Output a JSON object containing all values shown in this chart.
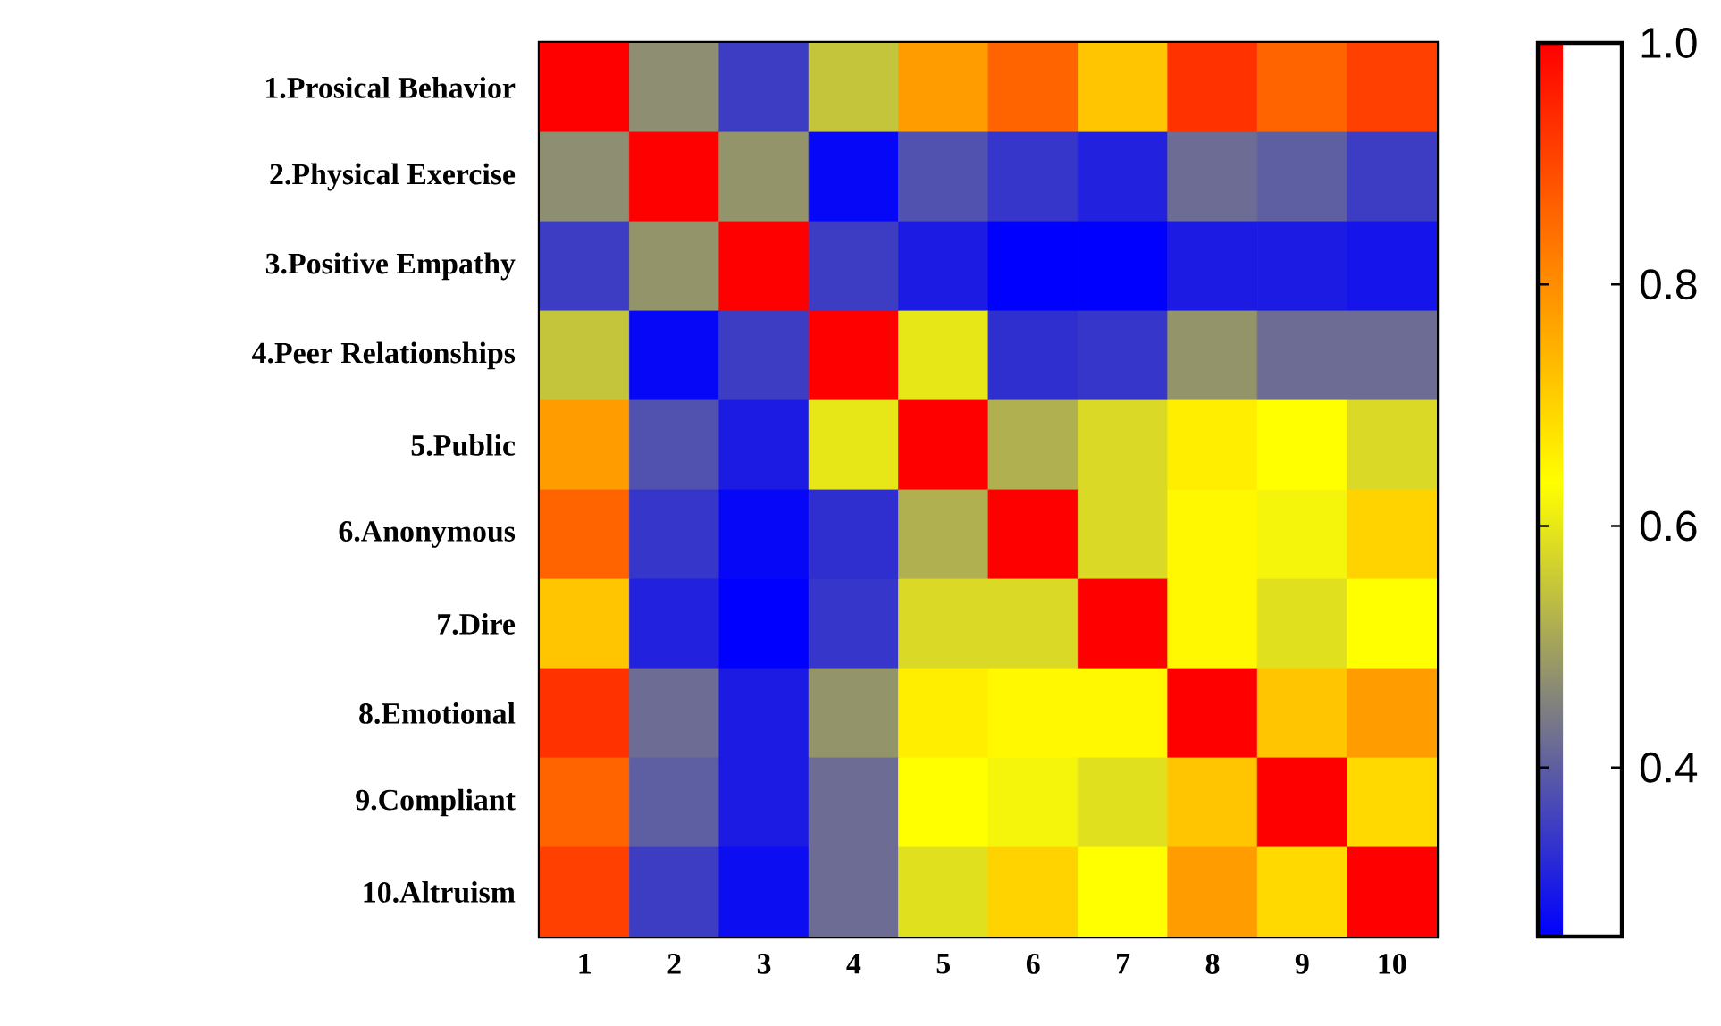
{
  "chart_data": {
    "type": "heatmap",
    "categories": [
      "1",
      "2",
      "3",
      "4",
      "5",
      "6",
      "7",
      "8",
      "9",
      "10"
    ],
    "y_categories": [
      "1.Prosical Behavior",
      "2.Physical Exercise",
      "3.Positive Empathy",
      "4.Peer Relationships",
      "5.Public",
      "6.Anonymous",
      "7.Dire",
      "8.Emotional",
      "9.Compliant",
      "10.Altruism"
    ],
    "cells": [
      [
        1,
        0.47,
        0.35,
        0.55,
        0.78,
        0.86,
        0.72,
        0.93,
        0.86,
        0.91
      ],
      [
        0.47,
        1,
        0.48,
        0.27,
        0.38,
        0.34,
        0.31,
        0.42,
        0.4,
        0.35
      ],
      [
        0.35,
        0.48,
        1,
        0.35,
        0.3,
        0.26,
        0.26,
        0.3,
        0.3,
        0.29
      ],
      [
        0.55,
        0.27,
        0.35,
        1,
        0.6,
        0.33,
        0.34,
        0.48,
        0.42,
        0.42
      ],
      [
        0.78,
        0.38,
        0.3,
        0.6,
        1,
        0.52,
        0.58,
        0.66,
        0.635,
        0.58
      ],
      [
        0.86,
        0.34,
        0.27,
        0.33,
        0.52,
        1,
        0.58,
        0.645,
        0.62,
        0.7
      ],
      [
        0.72,
        0.31,
        0.26,
        0.34,
        0.58,
        0.58,
        1,
        0.645,
        0.59,
        0.635
      ],
      [
        0.93,
        0.42,
        0.3,
        0.48,
        0.66,
        0.645,
        0.645,
        1,
        0.72,
        0.78
      ],
      [
        0.86,
        0.4,
        0.3,
        0.42,
        0.635,
        0.62,
        0.59,
        0.72,
        1,
        0.69
      ],
      [
        0.91,
        0.35,
        0.28,
        0.42,
        0.59,
        0.7,
        0.635,
        0.78,
        0.69,
        1
      ]
    ],
    "clim": [
      0.26,
      1.0
    ],
    "cticks": [
      0.4,
      0.6,
      0.8,
      {
        "value": 1.0,
        "label": "1.0"
      }
    ]
  }
}
